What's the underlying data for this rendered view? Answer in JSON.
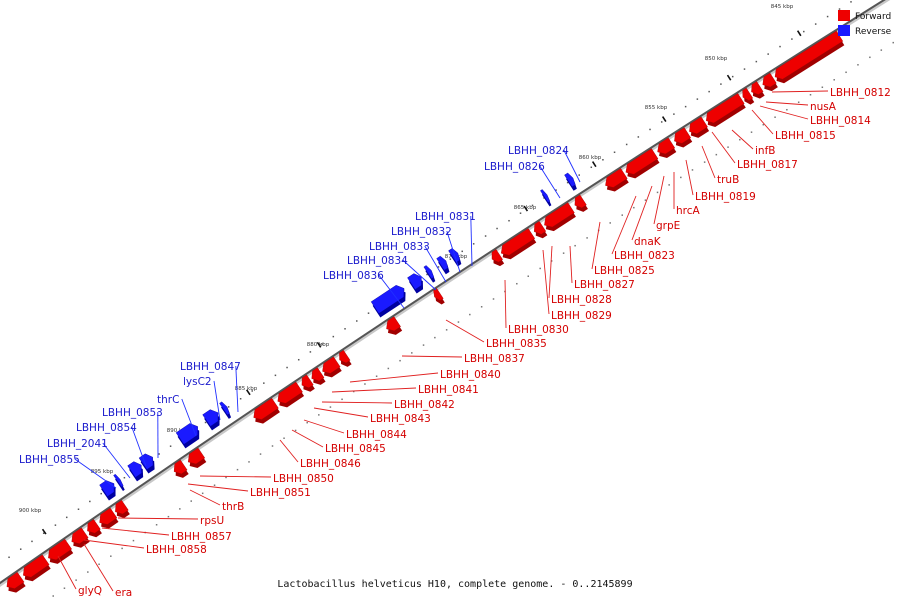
{
  "legend": {
    "forward_label": "Forward",
    "reverse_label": "Reverse",
    "forward_color": "#ee0000",
    "reverse_color": "#1a1aff"
  },
  "caption": "Lactobacillus helveticus H10, complete genome. - 0..2145899",
  "ticks": [
    "845 kbp",
    "850 kbp",
    "855 kbp",
    "860 kbp",
    "865 kbp",
    "870 kbp",
    "875 kbp",
    "880 kbp",
    "885 kbp",
    "890 kbp",
    "895 kbp",
    "900 kbp"
  ],
  "forward_genes": [
    "LBHH_0812",
    "nusA",
    "LBHH_0814",
    "LBHH_0815",
    "infB",
    "LBHH_0817",
    "truB",
    "LBHH_0819",
    "hrcA",
    "grpE",
    "dnaK",
    "LBHH_0823",
    "LBHH_0825",
    "LBHH_0827",
    "LBHH_0829",
    "LBHH_0828",
    "LBHH_0830",
    "LBHH_0835",
    "LBHH_0837",
    "LBHH_0840",
    "LBHH_0841",
    "LBHH_0842",
    "LBHH_0843",
    "LBHH_0844",
    "LBHH_0845",
    "LBHH_0846",
    "LBHH_0850",
    "LBHH_0851",
    "thrB",
    "rpsU",
    "LBHH_0857",
    "LBHH_0858",
    "glyQ",
    "era"
  ],
  "reverse_genes": [
    "LBHH_0824",
    "LBHH_0826",
    "LBHH_0831",
    "LBHH_0832",
    "LBHH_0833",
    "LBHH_0834",
    "LBHH_0836",
    "LBHH_0847",
    "lysC2",
    "thrC",
    "LBHH_0853",
    "LBHH_0854",
    "LBHH_2041",
    "LBHH_0855"
  ]
}
